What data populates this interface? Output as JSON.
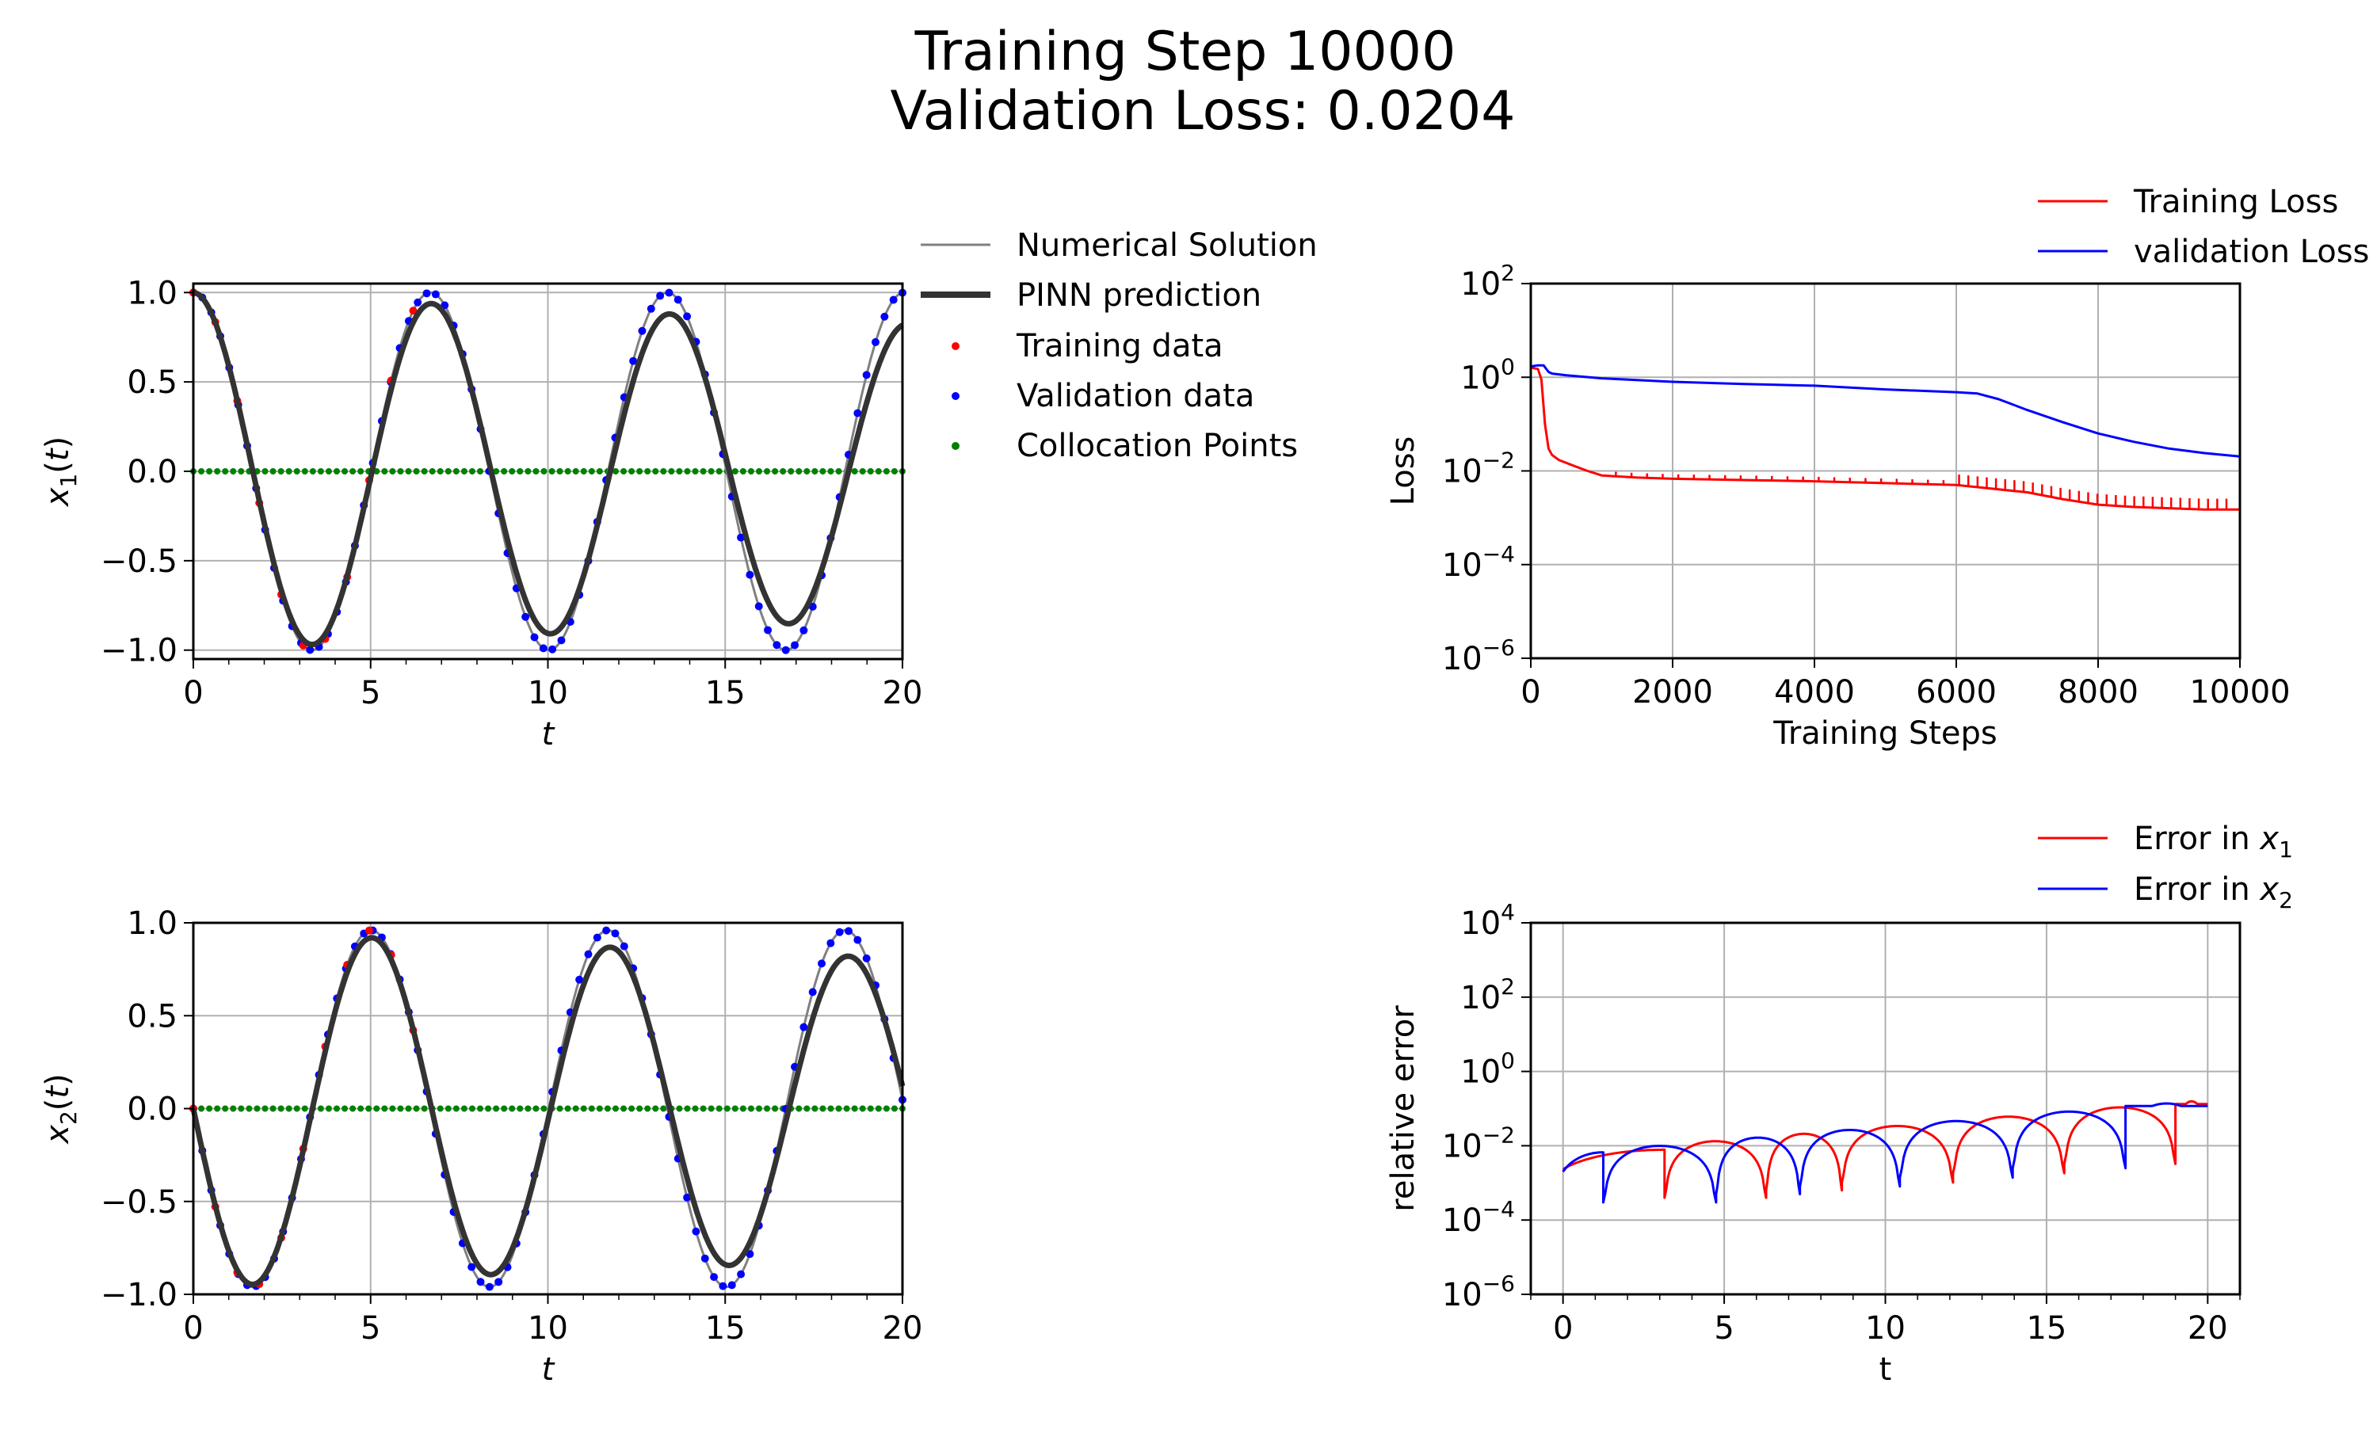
{
  "title_line1": "Training Step 10000",
  "title_line2": "Validation Loss: 0.0204",
  "chart_data": [
    {
      "type": "line",
      "id": "x1",
      "xlabel": "t",
      "ylabel": "x1(t)",
      "xlim": [
        0,
        20
      ],
      "ylim": [
        -1.05,
        1.05
      ],
      "xticks": [
        0,
        5,
        10,
        15,
        20
      ],
      "yticks": [
        -1.0,
        -0.5,
        0.0,
        0.5,
        1.0
      ],
      "ytick_labels": [
        "−1.0",
        "−0.5",
        "0.0",
        "0.5",
        "1.0"
      ],
      "grid": true,
      "legend": {
        "placement": "outside-right",
        "entries": [
          "Numerical Solution",
          "PINN prediction",
          "Training data",
          "Validation data",
          "Collocation Points"
        ]
      },
      "series": [
        {
          "name": "Numerical Solution",
          "style": "thin-gray-line",
          "color": "#808080",
          "model": {
            "func": "cos",
            "amp": 1.0,
            "omega": 0.94,
            "phase": 0.0,
            "decay": 0.0
          }
        },
        {
          "name": "PINN prediction",
          "style": "thick-dark-line",
          "color": "#333333",
          "model": {
            "func": "cos",
            "amp": 1.0,
            "omega": 0.935,
            "phase": 0.0,
            "decay": 0.0095
          }
        },
        {
          "name": "Training data",
          "style": "red-dots",
          "color": "#ff0000",
          "t_range": [
            0,
            6.2
          ],
          "n": 11
        },
        {
          "name": "Validation data",
          "style": "blue-dots",
          "color": "#0000ff",
          "t_range": [
            0,
            20
          ],
          "n": 80
        },
        {
          "name": "Collocation Points",
          "style": "green-dots",
          "color": "#008000",
          "y": 0.0,
          "t_range": [
            0,
            20
          ],
          "n": 90
        }
      ]
    },
    {
      "type": "line",
      "id": "loss",
      "xlabel": "Training Steps",
      "ylabel": "Loss",
      "xlim": [
        0,
        10000
      ],
      "ylim_log10": [
        -6,
        2
      ],
      "yscale": "log",
      "xticks": [
        0,
        2000,
        4000,
        6000,
        8000,
        10000
      ],
      "yticks_exp": [
        -6,
        -4,
        -2,
        0,
        2
      ],
      "grid": true,
      "legend": {
        "placement": "top-right-outside",
        "entries": [
          "Training Loss",
          "validation Loss"
        ]
      },
      "series": [
        {
          "name": "Training Loss",
          "color": "#ff0000",
          "x": [
            0,
            100,
            150,
            200,
            250,
            300,
            400,
            600,
            800,
            1000,
            1500,
            2000,
            3000,
            4000,
            5000,
            6000,
            6300,
            7000,
            7500,
            8000,
            8500,
            9000,
            9500,
            10000
          ],
          "y": [
            1.6,
            1.5,
            0.9,
            0.1,
            0.03,
            0.022,
            0.017,
            0.013,
            0.01,
            0.008,
            0.0072,
            0.0068,
            0.0064,
            0.006,
            0.0055,
            0.005,
            0.0045,
            0.0035,
            0.0025,
            0.0019,
            0.0017,
            0.0016,
            0.0015,
            0.0015
          ]
        },
        {
          "name": "validation Loss",
          "color": "#0000ff",
          "x": [
            0,
            100,
            180,
            250,
            300,
            500,
            1000,
            2000,
            3000,
            4000,
            5000,
            6000,
            6300,
            6600,
            7000,
            7500,
            8000,
            8500,
            9000,
            9500,
            10000
          ],
          "y": [
            1.7,
            1.8,
            1.8,
            1.3,
            1.2,
            1.1,
            0.95,
            0.8,
            0.72,
            0.66,
            0.55,
            0.48,
            0.45,
            0.34,
            0.2,
            0.11,
            0.063,
            0.042,
            0.03,
            0.024,
            0.0204
          ]
        }
      ]
    },
    {
      "type": "line",
      "id": "x2",
      "xlabel": "t",
      "ylabel": "x2(t)",
      "xlim": [
        0,
        20
      ],
      "ylim": [
        -1.0,
        1.0
      ],
      "xticks": [
        0,
        5,
        10,
        15,
        20
      ],
      "yticks": [
        -1.0,
        -0.5,
        0.0,
        0.5,
        1.0
      ],
      "ytick_labels": [
        "−1.0",
        "−0.5",
        "0.0",
        "0.5",
        "1.0"
      ],
      "grid": true,
      "series": [
        {
          "name": "Numerical Solution",
          "style": "thin-gray-line",
          "color": "#808080",
          "model": {
            "func": "-sin",
            "amp": 0.96,
            "omega": 0.94,
            "phase": 0.0,
            "decay": 0.0
          }
        },
        {
          "name": "PINN prediction",
          "style": "thick-dark-line",
          "color": "#333333",
          "model": {
            "func": "-sin",
            "amp": 0.96,
            "omega": 0.935,
            "phase": 0.0,
            "decay": 0.0085
          }
        },
        {
          "name": "Training data",
          "style": "red-dots",
          "color": "#ff0000",
          "t_range": [
            0,
            6.2
          ],
          "n": 11
        },
        {
          "name": "Validation data",
          "style": "blue-dots",
          "color": "#0000ff",
          "t_range": [
            0,
            20
          ],
          "n": 80
        },
        {
          "name": "Collocation Points",
          "style": "green-dots",
          "color": "#008000",
          "y": 0.0,
          "t_range": [
            0,
            20
          ],
          "n": 90
        }
      ]
    },
    {
      "type": "line",
      "id": "err",
      "xlabel": "t",
      "ylabel": "relative error",
      "xlim": [
        -1,
        21
      ],
      "ylim_log10": [
        -6,
        4
      ],
      "yscale": "log",
      "xticks": [
        0,
        5,
        10,
        15,
        20
      ],
      "yticks_exp": [
        -6,
        -4,
        -2,
        0,
        2,
        4
      ],
      "grid": true,
      "legend": {
        "placement": "top-right-outside",
        "entries": [
          "Error in x1",
          "Error in x2"
        ]
      },
      "series": [
        {
          "name": "Error in x1",
          "color": "#ff0000",
          "zeros": [
            3.15,
            6.3,
            8.65,
            12.1,
            15.55,
            19.0
          ],
          "peak_start": 0.006,
          "peak_end": 0.17
        },
        {
          "name": "Error in x2",
          "color": "#0000ff",
          "zeros": [
            1.25,
            4.75,
            7.35,
            10.45,
            13.95,
            17.45
          ],
          "peak_start": 0.006,
          "peak_end": 0.17
        }
      ]
    }
  ]
}
